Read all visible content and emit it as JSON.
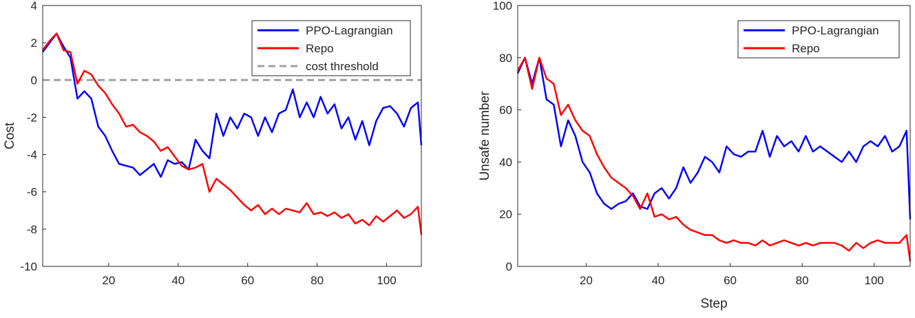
{
  "chart_data": [
    {
      "type": "line",
      "ylabel": "Cost",
      "legend": "upper right",
      "x": [
        1,
        3,
        5,
        7,
        9,
        11,
        13,
        15,
        17,
        19,
        21,
        23,
        25,
        27,
        29,
        31,
        33,
        35,
        37,
        39,
        41,
        43,
        45,
        47,
        49,
        51,
        53,
        55,
        57,
        59,
        61,
        63,
        65,
        67,
        69,
        71,
        73,
        75,
        77,
        79,
        81,
        83,
        85,
        87,
        89,
        91,
        93,
        95,
        97,
        99,
        101,
        103,
        105,
        107,
        109,
        110
      ],
      "xlim": [
        1,
        110
      ],
      "xticks": [
        20,
        40,
        60,
        80,
        100
      ],
      "ylim": [
        -10,
        4
      ],
      "yticks": [
        -10,
        -8,
        -6,
        -4,
        -2,
        0,
        2,
        4
      ],
      "series": [
        {
          "name": "PPO-Lagrangian",
          "color": "#0000ff",
          "values": [
            1.5,
            2.0,
            2.5,
            1.8,
            1.2,
            -1.0,
            -0.6,
            -1.0,
            -2.5,
            -3.0,
            -3.8,
            -4.5,
            -4.6,
            -4.7,
            -5.1,
            -4.8,
            -4.5,
            -5.2,
            -4.3,
            -4.5,
            -4.4,
            -4.8,
            -3.2,
            -3.8,
            -4.2,
            -1.8,
            -3.0,
            -2.0,
            -2.6,
            -1.8,
            -2.0,
            -3.0,
            -2.0,
            -2.8,
            -1.8,
            -1.6,
            -0.5,
            -2.0,
            -1.2,
            -2.0,
            -0.9,
            -1.8,
            -1.3,
            -2.6,
            -2.0,
            -3.2,
            -2.2,
            -3.5,
            -2.2,
            -1.5,
            -1.4,
            -1.8,
            -2.5,
            -1.5,
            -1.2,
            -3.5
          ]
        },
        {
          "name": "Repo",
          "color": "#ff0000",
          "values": [
            1.6,
            2.1,
            2.5,
            1.6,
            1.5,
            -0.2,
            0.5,
            0.3,
            -0.3,
            -0.7,
            -1.3,
            -1.8,
            -2.5,
            -2.4,
            -2.8,
            -3.0,
            -3.3,
            -3.8,
            -3.6,
            -4.1,
            -4.6,
            -4.8,
            -4.7,
            -4.5,
            -6.0,
            -5.3,
            -5.6,
            -5.9,
            -6.3,
            -6.7,
            -7.0,
            -6.7,
            -7.2,
            -6.9,
            -7.2,
            -6.9,
            -7.0,
            -7.1,
            -6.6,
            -7.2,
            -7.1,
            -7.3,
            -7.1,
            -7.4,
            -7.2,
            -7.7,
            -7.5,
            -7.8,
            -7.3,
            -7.6,
            -7.3,
            -7.0,
            -7.4,
            -7.2,
            -6.8,
            -8.3
          ]
        }
      ],
      "threshold": {
        "name": "cost threshold",
        "value": 0,
        "color": "#a0a0a0"
      }
    },
    {
      "type": "line",
      "ylabel": "Unsafe number",
      "xlabel": "Step",
      "legend": "upper right",
      "x": [
        1,
        3,
        5,
        7,
        9,
        11,
        13,
        15,
        17,
        19,
        21,
        23,
        25,
        27,
        29,
        31,
        33,
        35,
        37,
        39,
        41,
        43,
        45,
        47,
        49,
        51,
        53,
        55,
        57,
        59,
        61,
        63,
        65,
        67,
        69,
        71,
        73,
        75,
        77,
        79,
        81,
        83,
        85,
        87,
        89,
        91,
        93,
        95,
        97,
        99,
        101,
        103,
        105,
        107,
        109,
        110
      ],
      "xlim": [
        1,
        110
      ],
      "xticks": [
        20,
        40,
        60,
        80,
        100
      ],
      "ylim": [
        0,
        100
      ],
      "yticks": [
        0,
        20,
        40,
        60,
        80,
        100
      ],
      "series": [
        {
          "name": "PPO-Lagrangian",
          "color": "#0000ff",
          "values": [
            74,
            80,
            70,
            80,
            64,
            62,
            46,
            56,
            50,
            40,
            36,
            28,
            24,
            22,
            24,
            25,
            28,
            23,
            22,
            28,
            30,
            26,
            30,
            38,
            32,
            36,
            42,
            40,
            36,
            46,
            43,
            42,
            44,
            44,
            52,
            42,
            50,
            46,
            48,
            44,
            50,
            44,
            46,
            44,
            42,
            40,
            44,
            40,
            46,
            48,
            46,
            50,
            44,
            46,
            52,
            18
          ]
        },
        {
          "name": "Repo",
          "color": "#ff0000",
          "values": [
            75,
            80,
            68,
            80,
            72,
            70,
            58,
            62,
            56,
            52,
            50,
            43,
            38,
            34,
            32,
            30,
            27,
            22,
            28,
            19,
            20,
            18,
            19,
            16,
            14,
            13,
            12,
            12,
            10,
            9,
            10,
            9,
            9,
            8,
            10,
            8,
            9,
            10,
            9,
            8,
            9,
            8,
            9,
            9,
            9,
            8,
            6,
            9,
            7,
            9,
            10,
            9,
            9,
            9,
            12,
            2
          ]
        }
      ]
    }
  ]
}
